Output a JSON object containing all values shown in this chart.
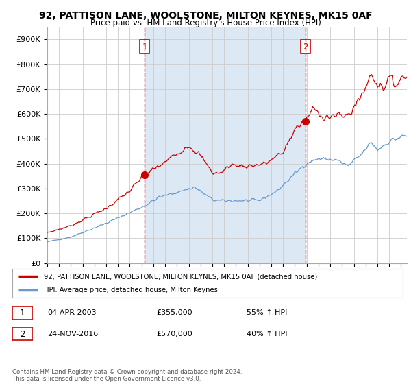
{
  "title": "92, PATTISON LANE, WOOLSTONE, MILTON KEYNES, MK15 0AF",
  "subtitle": "Price paid vs. HM Land Registry's House Price Index (HPI)",
  "xlim_start": 1995.0,
  "xlim_end": 2025.5,
  "ylim_bottom": 0,
  "ylim_top": 950000,
  "yticks": [
    0,
    100000,
    200000,
    300000,
    400000,
    500000,
    600000,
    700000,
    800000,
    900000
  ],
  "ytick_labels": [
    "£0",
    "£100K",
    "£200K",
    "£300K",
    "£400K",
    "£500K",
    "£600K",
    "£700K",
    "£800K",
    "£900K"
  ],
  "purchase1_x": 2003.25,
  "purchase1_y": 355000,
  "purchase2_x": 2016.9,
  "purchase2_y": 570000,
  "marker1_label": "1",
  "marker2_label": "2",
  "legend_line1": "92, PATTISON LANE, WOOLSTONE, MILTON KEYNES, MK15 0AF (detached house)",
  "legend_line2": "HPI: Average price, detached house, Milton Keynes",
  "table_row1_num": "1",
  "table_row1_date": "04-APR-2003",
  "table_row1_price": "£355,000",
  "table_row1_hpi": "55% ↑ HPI",
  "table_row2_num": "2",
  "table_row2_date": "24-NOV-2016",
  "table_row2_price": "£570,000",
  "table_row2_hpi": "40% ↑ HPI",
  "footnote": "Contains HM Land Registry data © Crown copyright and database right 2024.\nThis data is licensed under the Open Government Licence v3.0.",
  "line_color_red": "#cc0000",
  "line_color_blue": "#6699cc",
  "fill_color": "#dde8f5",
  "vline_color": "#cc0000",
  "bg_color": "#ffffff",
  "grid_color": "#cccccc"
}
